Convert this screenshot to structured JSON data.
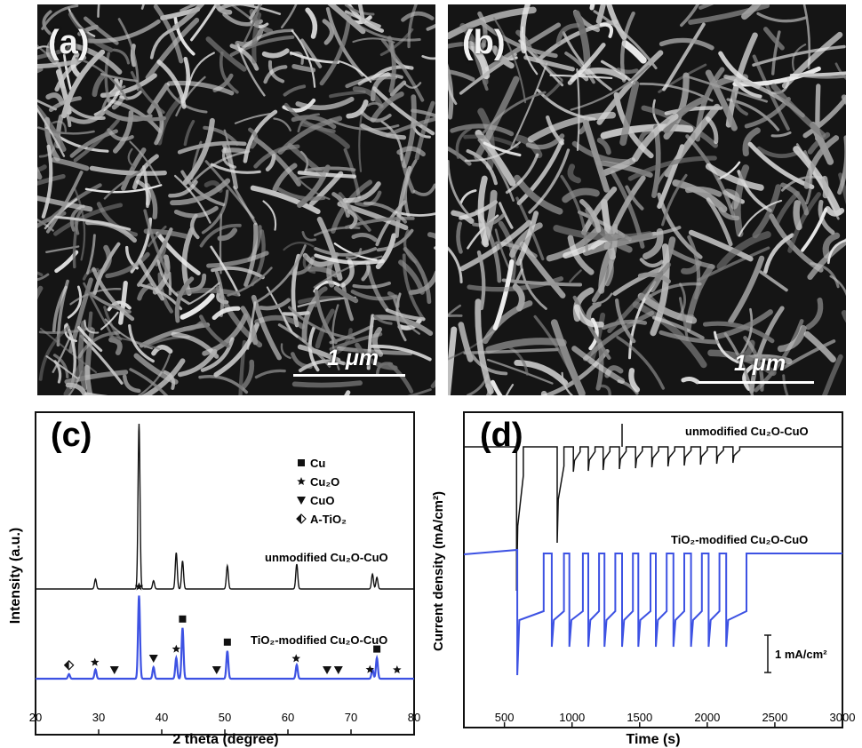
{
  "panels": {
    "a": {
      "label": "(a)",
      "scale": "1 μm"
    },
    "b": {
      "label": "(b)",
      "scale": "1 μm"
    }
  },
  "chart_data": [
    {
      "id": "c",
      "type": "line",
      "panel_label": "(c)",
      "xlabel": "2 theta (degree)",
      "ylabel": "Intensity (a.u.)",
      "xlim": [
        20,
        80
      ],
      "xticks": [
        "20",
        "30",
        "40",
        "50",
        "60",
        "70",
        "80"
      ],
      "legend": [
        {
          "marker": "square",
          "label": "Cu"
        },
        {
          "marker": "star",
          "label": "Cu₂O"
        },
        {
          "marker": "triangle-down",
          "label": "CuO"
        },
        {
          "marker": "half-diamond",
          "label": "A-TiO₂"
        }
      ],
      "series": [
        {
          "name": "unmodified Cu₂O-CuO",
          "color": "#111111",
          "peaks": [
            {
              "x": 29.5,
              "h": 0.06
            },
            {
              "x": 36.4,
              "h": 1.0
            },
            {
              "x": 38.7,
              "h": 0.05
            },
            {
              "x": 42.3,
              "h": 0.22
            },
            {
              "x": 43.3,
              "h": 0.17
            },
            {
              "x": 50.4,
              "h": 0.14
            },
            {
              "x": 61.4,
              "h": 0.15
            },
            {
              "x": 73.4,
              "h": 0.09
            },
            {
              "x": 74.1,
              "h": 0.07
            }
          ]
        },
        {
          "name": "TiO₂-modified Cu₂O-CuO",
          "color": "#3d52e3",
          "peaks": [
            {
              "x": 25.3,
              "h": 0.02
            },
            {
              "x": 29.5,
              "h": 0.04
            },
            {
              "x": 36.4,
              "h": 0.36
            },
            {
              "x": 38.7,
              "h": 0.05
            },
            {
              "x": 42.3,
              "h": 0.09
            },
            {
              "x": 43.3,
              "h": 0.22
            },
            {
              "x": 50.4,
              "h": 0.12
            },
            {
              "x": 61.4,
              "h": 0.06
            },
            {
              "x": 73.4,
              "h": 0.04
            },
            {
              "x": 74.1,
              "h": 0.09
            }
          ]
        }
      ],
      "markers": [
        {
          "x": 25.3,
          "type": "half-diamond"
        },
        {
          "x": 29.4,
          "type": "star"
        },
        {
          "x": 32.5,
          "type": "triangle-down"
        },
        {
          "x": 36.4,
          "type": "star"
        },
        {
          "x": 38.7,
          "type": "triangle-down"
        },
        {
          "x": 42.3,
          "type": "star"
        },
        {
          "x": 43.3,
          "type": "square"
        },
        {
          "x": 48.7,
          "type": "triangle-down"
        },
        {
          "x": 50.4,
          "type": "square"
        },
        {
          "x": 61.3,
          "type": "star"
        },
        {
          "x": 66.2,
          "type": "triangle-down"
        },
        {
          "x": 68.0,
          "type": "triangle-down"
        },
        {
          "x": 73.0,
          "type": "star"
        },
        {
          "x": 74.1,
          "type": "square"
        },
        {
          "x": 77.3,
          "type": "star"
        }
      ]
    },
    {
      "id": "d",
      "type": "line",
      "panel_label": "(d)",
      "xlabel": "Time (s)",
      "ylabel": "Current density (mA/cm²)",
      "xlim": [
        200,
        3000
      ],
      "xticks": [
        "500",
        "1000",
        "1500",
        "2000",
        "2500",
        "3000"
      ],
      "scale_bar": "1 mA/cm²",
      "series": [
        {
          "name": "unmodified Cu₂O-CuO",
          "color": "#111111",
          "light_on": [
            590,
            890,
            1010,
            1120,
            1230,
            1350,
            1470,
            1590,
            1710,
            1830,
            1950,
            2070,
            2190
          ],
          "light_off": [
            640,
            940,
            1060,
            1170,
            1280,
            1400,
            1520,
            1640,
            1760,
            1880,
            2000,
            2120,
            2240
          ]
        },
        {
          "name": "TiO₂-modified Cu₂O-CuO",
          "color": "#3d52e3",
          "light_on": [
            595,
            850,
            980,
            1120,
            1240,
            1370,
            1490,
            1620,
            1750,
            1880,
            2010,
            2140
          ],
          "light_off": [
            790,
            940,
            1080,
            1200,
            1320,
            1450,
            1580,
            1700,
            1830,
            1960,
            2090,
            2290
          ]
        }
      ]
    }
  ]
}
